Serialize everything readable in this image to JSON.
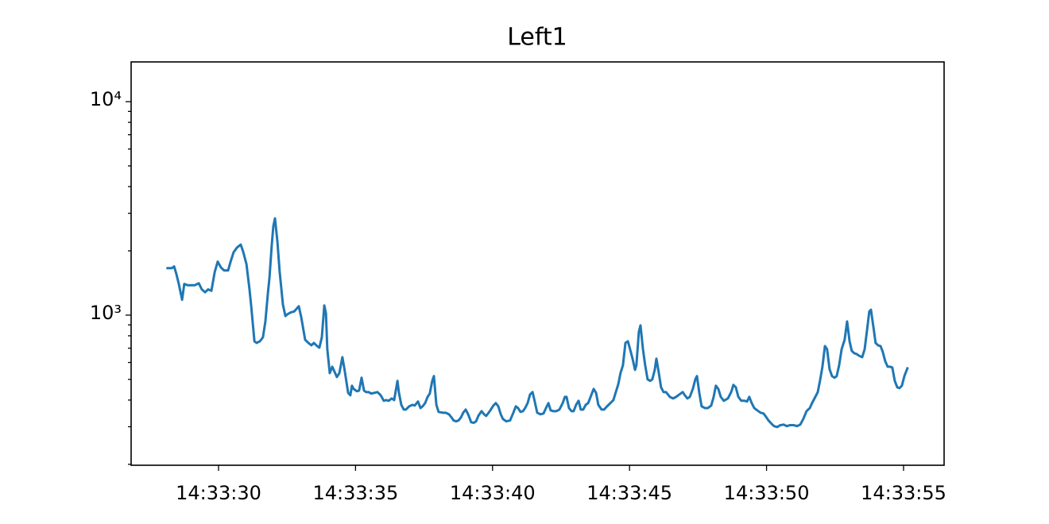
{
  "chart_data": {
    "type": "line",
    "title": "Left1",
    "color": "#1f77b4",
    "yscale": "log",
    "x": [
      "14:33:28.14",
      "14:33:28.29",
      "14:33:28.38",
      "14:33:28.46",
      "14:33:28.55",
      "14:33:28.67",
      "14:33:28.75",
      "14:33:28.87",
      "14:33:29.13",
      "14:33:29.28",
      "14:33:29.39",
      "14:33:29.51",
      "14:33:29.62",
      "14:33:29.74",
      "14:33:29.86",
      "14:33:29.97",
      "14:33:30.09",
      "14:33:30.20",
      "14:33:30.35",
      "14:33:30.44",
      "14:33:30.55",
      "14:33:30.67",
      "14:33:30.81",
      "14:33:30.90",
      "14:33:31.02",
      "14:33:31.13",
      "14:33:31.19",
      "14:33:31.31",
      "14:33:31.39",
      "14:33:31.51",
      "14:33:31.62",
      "14:33:31.71",
      "14:33:31.80",
      "14:33:31.86",
      "14:33:31.94",
      "14:33:32.00",
      "14:33:32.06",
      "14:33:32.15",
      "14:33:32.23",
      "14:33:32.35",
      "14:33:32.44",
      "14:33:32.52",
      "14:33:32.64",
      "14:33:32.76",
      "14:33:32.93",
      "14:33:33.02",
      "14:33:33.07",
      "14:33:33.16",
      "14:33:33.28",
      "14:33:33.39",
      "14:33:33.48",
      "14:33:33.60",
      "14:33:33.68",
      "14:33:33.77",
      "14:33:33.86",
      "14:33:33.92",
      "14:33:33.97",
      "14:33:34.06",
      "14:33:34.15",
      "14:33:34.23",
      "14:33:34.32",
      "14:33:34.41",
      "14:33:34.52",
      "14:33:34.61",
      "14:33:34.73",
      "14:33:34.81",
      "14:33:34.87",
      "14:33:34.93",
      "14:33:35.05",
      "14:33:35.13",
      "14:33:35.22",
      "14:33:35.31",
      "14:33:35.39",
      "14:33:35.48",
      "14:33:35.57",
      "14:33:35.68",
      "14:33:35.80",
      "14:33:35.92",
      "14:33:36.03",
      "14:33:36.12",
      "14:33:36.21",
      "14:33:36.32",
      "14:33:36.41",
      "14:33:36.53",
      "14:33:36.58",
      "14:33:36.67",
      "14:33:36.76",
      "14:33:36.84",
      "14:33:36.96",
      "14:33:37.08",
      "14:33:37.16",
      "14:33:37.28",
      "14:33:37.37",
      "14:33:37.45",
      "14:33:37.54",
      "14:33:37.63",
      "14:33:37.71",
      "14:33:37.80",
      "14:33:37.86",
      "14:33:37.95",
      "14:33:38.03",
      "14:33:38.18",
      "14:33:38.29",
      "14:33:38.41",
      "14:33:38.50",
      "14:33:38.58",
      "14:33:38.67",
      "14:33:38.76",
      "14:33:38.85",
      "14:33:38.93",
      "14:33:39.02",
      "14:33:39.11",
      "14:33:39.22",
      "14:33:39.31",
      "14:33:39.40",
      "14:33:39.48",
      "14:33:39.60",
      "14:33:39.69",
      "14:33:39.77",
      "14:33:39.92",
      "14:33:40.03",
      "14:33:40.12",
      "14:33:40.21",
      "14:33:40.30",
      "14:33:40.38",
      "14:33:40.50",
      "14:33:40.64",
      "14:33:40.76",
      "14:33:40.85",
      "14:33:40.93",
      "14:33:41.02",
      "14:33:41.11",
      "14:33:41.19",
      "14:33:41.28",
      "14:33:41.37",
      "14:33:41.46",
      "14:33:41.54",
      "14:33:41.63",
      "14:33:41.75",
      "14:33:41.86",
      "14:33:41.95",
      "14:33:42.04",
      "14:33:42.12",
      "14:33:42.21",
      "14:33:42.33",
      "14:33:42.44",
      "14:33:42.56",
      "14:33:42.64",
      "14:33:42.70",
      "14:33:42.79",
      "14:33:42.88",
      "14:33:42.96",
      "14:33:43.05",
      "14:33:43.14",
      "14:33:43.22",
      "14:33:43.31",
      "14:33:43.40",
      "14:33:43.49",
      "14:33:43.60",
      "14:33:43.69",
      "14:33:43.78",
      "14:33:43.86",
      "14:33:43.98",
      "14:33:44.07",
      "14:33:44.18",
      "14:33:44.30",
      "14:33:44.41",
      "14:33:44.50",
      "14:33:44.59",
      "14:33:44.67",
      "14:33:44.76",
      "14:33:44.85",
      "14:33:44.94",
      "14:33:45.02",
      "14:33:45.11",
      "14:33:45.20",
      "14:33:45.25",
      "14:33:45.34",
      "14:33:45.40",
      "14:33:45.49",
      "14:33:45.57",
      "14:33:45.66",
      "14:33:45.75",
      "14:33:45.83",
      "14:33:45.92",
      "14:33:45.98",
      "14:33:46.07",
      "14:33:46.15",
      "14:33:46.24",
      "14:33:46.33",
      "14:33:46.47",
      "14:33:46.59",
      "14:33:46.70",
      "14:33:46.82",
      "14:33:46.94",
      "14:33:47.02",
      "14:33:47.11",
      "14:33:47.20",
      "14:33:47.31",
      "14:33:47.40",
      "14:33:47.46",
      "14:33:47.55",
      "14:33:47.63",
      "14:33:47.75",
      "14:33:47.86",
      "14:33:47.98",
      "14:33:48.07",
      "14:33:48.15",
      "14:33:48.24",
      "14:33:48.33",
      "14:33:48.44",
      "14:33:48.59",
      "14:33:48.71",
      "14:33:48.79",
      "14:33:48.88",
      "14:33:48.97",
      "14:33:49.08",
      "14:33:49.20",
      "14:33:49.29",
      "14:33:49.37",
      "14:33:49.46",
      "14:33:49.55",
      "14:33:49.66",
      "14:33:49.78",
      "14:33:49.89",
      "14:33:49.98",
      "14:33:50.07",
      "14:33:50.18",
      "14:33:50.27",
      "14:33:50.39",
      "14:33:50.50",
      "14:33:50.62",
      "14:33:50.74",
      "14:33:50.85",
      "14:33:51.00",
      "14:33:51.11",
      "14:33:51.23",
      "14:33:51.34",
      "14:33:51.46",
      "14:33:51.58",
      "14:33:51.66",
      "14:33:51.78",
      "14:33:51.87",
      "14:33:51.95",
      "14:33:52.04",
      "14:33:52.13",
      "14:33:52.21",
      "14:33:52.30",
      "14:33:52.39",
      "14:33:52.48",
      "14:33:52.56",
      "14:33:52.65",
      "14:33:52.74",
      "14:33:52.85",
      "14:33:52.94",
      "14:33:53.03",
      "14:33:53.11",
      "14:33:53.20",
      "14:33:53.29",
      "14:33:53.37",
      "14:33:53.49",
      "14:33:53.58",
      "14:33:53.66",
      "14:33:53.75",
      "14:33:53.81",
      "14:33:53.90",
      "14:33:53.98",
      "14:33:54.07",
      "14:33:54.16",
      "14:33:54.24",
      "14:33:54.33",
      "14:33:54.42",
      "14:33:54.51",
      "14:33:54.59",
      "14:33:54.68",
      "14:33:54.77",
      "14:33:54.85",
      "14:33:54.94",
      "14:33:55.03",
      "14:33:55.14"
    ],
    "values": [
      1660,
      1660,
      1690,
      1560,
      1400,
      1180,
      1400,
      1380,
      1380,
      1410,
      1320,
      1280,
      1320,
      1300,
      1590,
      1780,
      1670,
      1620,
      1620,
      1780,
      1970,
      2070,
      2140,
      1980,
      1730,
      1320,
      1110,
      754,
      741,
      754,
      787,
      934,
      1260,
      1500,
      2110,
      2610,
      2840,
      2200,
      1600,
      1120,
      990,
      1010,
      1030,
      1040,
      1100,
      975,
      895,
      767,
      741,
      722,
      741,
      716,
      704,
      787,
      1110,
      1020,
      692,
      535,
      573,
      544,
      513,
      535,
      635,
      544,
      432,
      421,
      467,
      451,
      440,
      443,
      509,
      443,
      436,
      436,
      429,
      432,
      436,
      421,
      397,
      400,
      397,
      407,
      400,
      492,
      436,
      380,
      361,
      361,
      374,
      380,
      377,
      394,
      367,
      374,
      387,
      414,
      429,
      492,
      518,
      380,
      352,
      349,
      349,
      343,
      332,
      321,
      318,
      321,
      332,
      349,
      361,
      343,
      315,
      313,
      318,
      337,
      355,
      343,
      337,
      358,
      377,
      387,
      374,
      343,
      326,
      318,
      321,
      349,
      374,
      367,
      352,
      355,
      367,
      387,
      425,
      436,
      394,
      349,
      343,
      346,
      367,
      387,
      358,
      355,
      355,
      361,
      387,
      414,
      414,
      367,
      355,
      355,
      380,
      397,
      361,
      361,
      380,
      387,
      421,
      451,
      432,
      380,
      361,
      361,
      374,
      387,
      400,
      436,
      475,
      535,
      583,
      741,
      754,
      692,
      625,
      554,
      583,
      835,
      895,
      692,
      583,
      500,
      492,
      500,
      554,
      625,
      535,
      459,
      436,
      436,
      414,
      407,
      414,
      425,
      436,
      421,
      407,
      414,
      451,
      500,
      518,
      429,
      374,
      367,
      367,
      377,
      414,
      467,
      451,
      414,
      397,
      407,
      436,
      471,
      459,
      414,
      397,
      397,
      394,
      414,
      387,
      367,
      358,
      349,
      346,
      334,
      321,
      310,
      302,
      299,
      305,
      307,
      302,
      305,
      305,
      302,
      307,
      326,
      355,
      367,
      387,
      414,
      436,
      492,
      573,
      716,
      692,
      558,
      518,
      509,
      518,
      583,
      692,
      767,
      934,
      754,
      680,
      663,
      657,
      646,
      635,
      692,
      835,
      1040,
      1060,
      880,
      741,
      722,
      716,
      674,
      609,
      573,
      573,
      568,
      492,
      459,
      455,
      467,
      518,
      563
    ],
    "xlim": [
      "14:33:26.81",
      "14:33:56.48"
    ],
    "xticks": [
      "14:33:30",
      "14:33:35",
      "14:33:40",
      "14:33:45",
      "14:33:50",
      "14:33:55"
    ],
    "ylim": [
      198,
      15350
    ],
    "yticks": [
      {
        "value": 1000,
        "label": "10³"
      },
      {
        "value": 10000,
        "label": "10⁴"
      }
    ],
    "yminorticks": [
      200,
      300,
      400,
      500,
      600,
      700,
      800,
      900,
      2000,
      3000,
      4000,
      5000,
      6000,
      7000,
      8000,
      9000
    ]
  }
}
